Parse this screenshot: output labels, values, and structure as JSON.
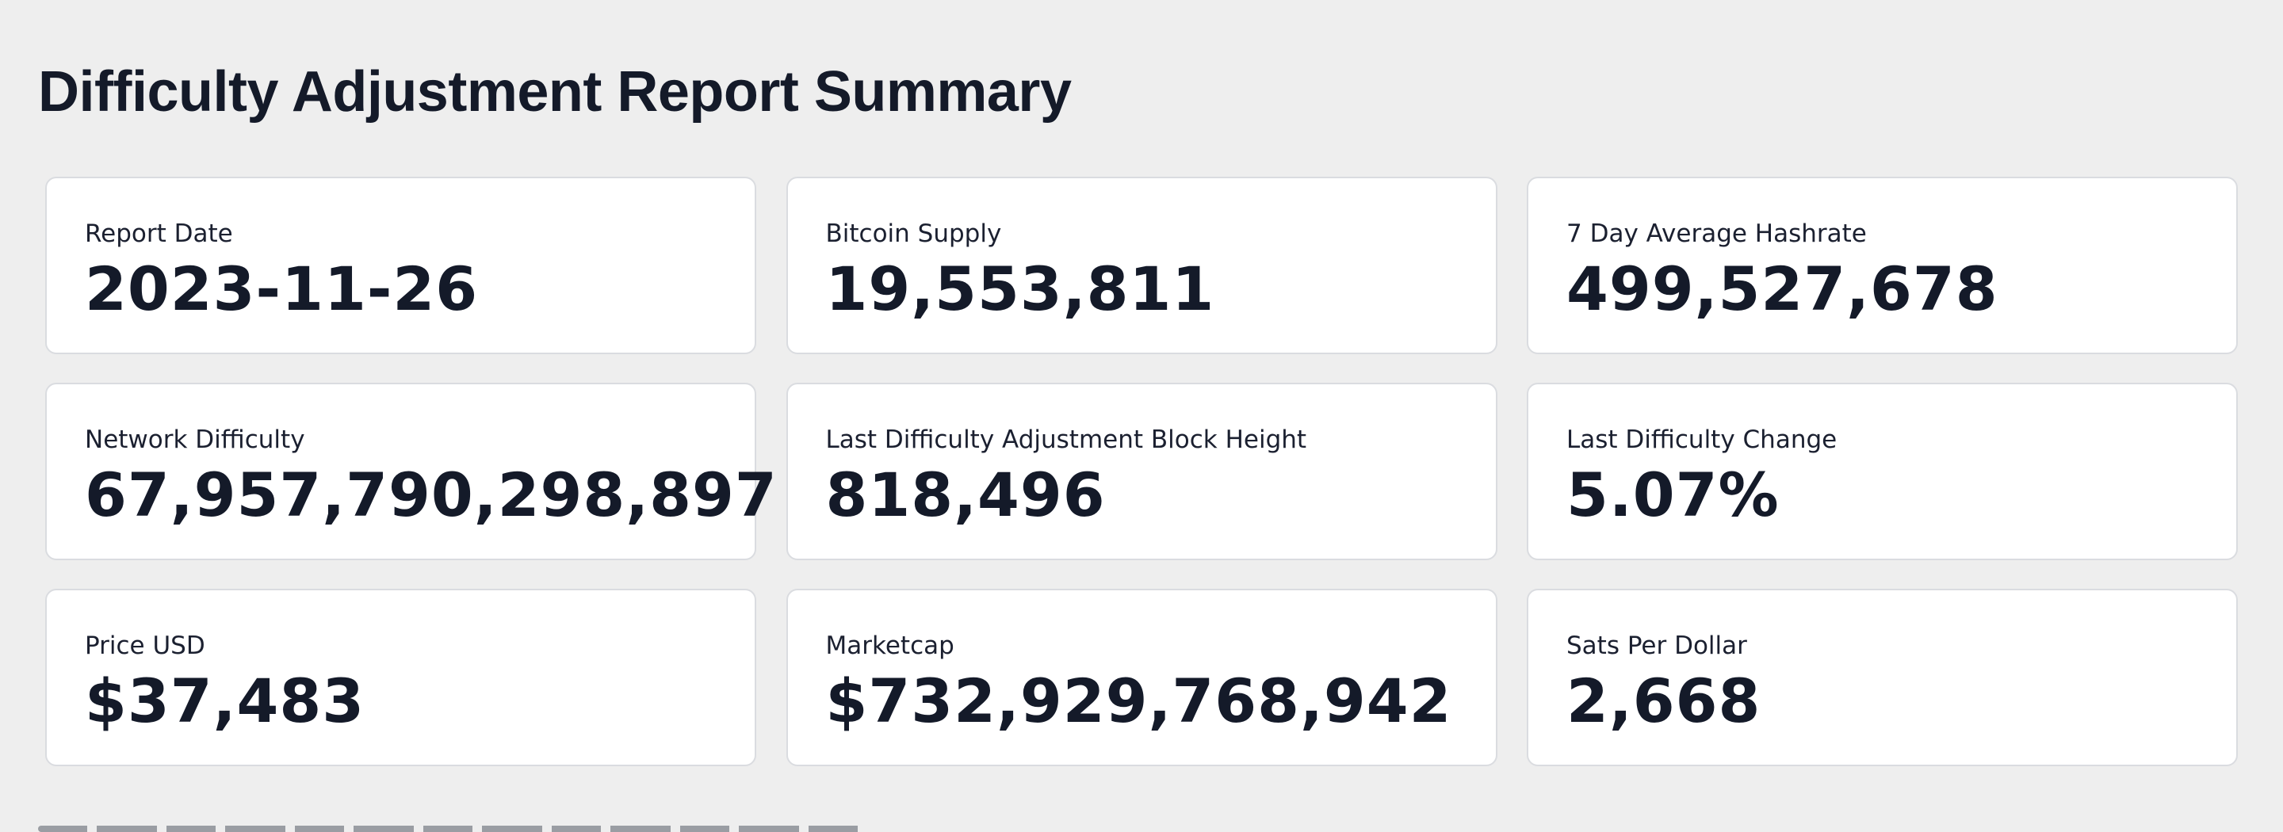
{
  "page": {
    "title": "Difficulty Adjustment Report Summary"
  },
  "cards": [
    {
      "id": "report-date",
      "label": "Report Date",
      "value": "2023-11-26"
    },
    {
      "id": "bitcoin-supply",
      "label": "Bitcoin Supply",
      "value": "19,553,811"
    },
    {
      "id": "hashrate-7d",
      "label": "7 Day Average Hashrate",
      "value": "499,527,678"
    },
    {
      "id": "network-difficulty",
      "label": "Network Difficulty",
      "value": "67,957,790,298,897"
    },
    {
      "id": "last-adjustment-height",
      "label": "Last Difficulty Adjustment Block Height",
      "value": "818,496"
    },
    {
      "id": "last-difficulty-change",
      "label": "Last Difficulty Change",
      "value": "5.07%"
    },
    {
      "id": "price-usd",
      "label": "Price USD",
      "value": "$37,483"
    },
    {
      "id": "marketcap",
      "label": "Marketcap",
      "value": "$732,929,768,942"
    },
    {
      "id": "sats-per-dollar",
      "label": "Sats Per Dollar",
      "value": "2,668"
    }
  ],
  "colors": {
    "background": "#eeeeee",
    "card": "#ffffff",
    "card_border": "#dadce0",
    "text": "#141a29"
  }
}
